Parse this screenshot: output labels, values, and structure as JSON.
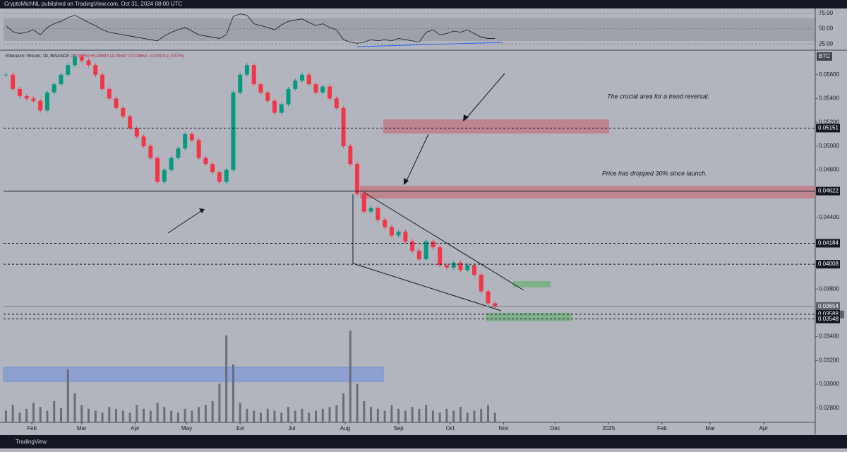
{
  "header": "CryptoMichNL published on TradingView.com, Oct 31, 2024 08:00 UTC",
  "footer": "TradingView",
  "chart_data": {
    "type": "candlestick",
    "legend": {
      "symbol": "Ethereum / Bitcoin, 1D, BINANCE",
      "open": "O0.03654",
      "high": "H0.03692",
      "low": "L0.03647",
      "close": "C0.03654",
      "change": "−0.00021 (−0.57%)"
    },
    "currency": "BTC",
    "countdown": "15:59:42",
    "annotations": [
      "The crucial area for a trend reversal.",
      "Price has dropped 30% since launch."
    ],
    "up_color": "#089981",
    "down_color": "#f23645",
    "x": [
      16,
      20,
      24,
      28,
      32,
      36,
      40,
      44,
      48,
      52,
      56,
      60,
      64,
      68,
      72,
      76,
      80,
      84,
      88,
      92,
      96,
      100,
      104,
      108,
      112,
      116,
      120,
      124,
      128,
      132,
      136,
      140,
      144,
      148,
      152,
      156,
      160,
      164,
      168,
      172,
      176,
      180,
      184,
      188,
      192,
      196,
      200,
      204,
      208,
      212,
      216,
      220,
      224,
      228,
      232,
      236,
      240,
      244,
      248,
      252,
      256,
      260,
      264,
      268,
      272,
      276,
      280,
      284,
      288,
      292,
      296,
      300
    ],
    "close": [
      0.056,
      0.0548,
      0.0542,
      0.054,
      0.0538,
      0.053,
      0.0545,
      0.0552,
      0.056,
      0.0568,
      0.0575,
      0.0572,
      0.0568,
      0.056,
      0.0548,
      0.054,
      0.0532,
      0.0525,
      0.0515,
      0.0508,
      0.05,
      0.049,
      0.047,
      0.048,
      0.049,
      0.0498,
      0.051,
      0.0505,
      0.049,
      0.0485,
      0.0478,
      0.047,
      0.048,
      0.0545,
      0.056,
      0.0568,
      0.0552,
      0.0545,
      0.0538,
      0.0528,
      0.0535,
      0.0548,
      0.0555,
      0.056,
      0.0552,
      0.0545,
      0.055,
      0.054,
      0.0532,
      0.05,
      0.0485,
      0.046,
      0.0445,
      0.0448,
      0.0438,
      0.0432,
      0.0425,
      0.0428,
      0.042,
      0.0412,
      0.0405,
      0.042,
      0.0415,
      0.04,
      0.0398,
      0.0402,
      0.0396,
      0.04,
      0.0392,
      0.0378,
      0.0368,
      0.0365
    ],
    "volume": [
      12,
      18,
      10,
      14,
      20,
      16,
      12,
      22,
      15,
      55,
      30,
      18,
      14,
      12,
      10,
      16,
      14,
      12,
      10,
      18,
      14,
      12,
      20,
      16,
      12,
      10,
      14,
      12,
      16,
      18,
      22,
      40,
      90,
      60,
      20,
      14,
      12,
      10,
      14,
      12,
      10,
      16,
      12,
      14,
      10,
      12,
      14,
      16,
      18,
      30,
      95,
      40,
      22,
      16,
      14,
      12,
      18,
      14,
      12,
      16,
      14,
      18,
      12,
      10,
      14,
      12,
      16,
      10,
      12,
      14,
      18,
      10
    ],
    "rsi": [
      55,
      45,
      42,
      44,
      48,
      40,
      52,
      58,
      62,
      68,
      72,
      66,
      60,
      55,
      48,
      44,
      42,
      40,
      38,
      36,
      34,
      32,
      30,
      38,
      44,
      48,
      52,
      46,
      40,
      38,
      36,
      34,
      40,
      70,
      74,
      72,
      58,
      55,
      52,
      48,
      56,
      62,
      64,
      66,
      60,
      55,
      58,
      52,
      48,
      32,
      28,
      26,
      28,
      32,
      30,
      32,
      30,
      34,
      32,
      30,
      28,
      44,
      48,
      40,
      42,
      46,
      44,
      48,
      42,
      36,
      34,
      34
    ],
    "xlim": [
      14.6,
      486
    ],
    "xticks": [
      {
        "value": 31,
        "label": "Feb"
      },
      {
        "value": 60,
        "label": "Mar"
      },
      {
        "value": 91,
        "label": "Apr"
      },
      {
        "value": 121,
        "label": "May"
      },
      {
        "value": 152,
        "label": "Jun"
      },
      {
        "value": 182,
        "label": "Jul"
      },
      {
        "value": 213,
        "label": "Aug"
      },
      {
        "value": 244,
        "label": "Sep"
      },
      {
        "value": 274,
        "label": "Oct"
      },
      {
        "value": 305,
        "label": "Nov"
      },
      {
        "value": 335,
        "label": "Dec"
      },
      {
        "value": 366,
        "label": "2025"
      },
      {
        "value": 397,
        "label": "Feb"
      },
      {
        "value": 425,
        "label": "Mar"
      },
      {
        "value": 456,
        "label": "Apr"
      }
    ],
    "ylim": [
      0.0268,
      0.058
    ],
    "yticks": [
      {
        "value": 0.056,
        "label": "0.05600"
      },
      {
        "value": 0.054,
        "label": "0.05400"
      },
      {
        "value": 0.052,
        "label": "0.05200"
      },
      {
        "value": 0.05,
        "label": "0.05000"
      },
      {
        "value": 0.048,
        "label": "0.04800"
      },
      {
        "value": 0.044,
        "label": "0.04400"
      },
      {
        "value": 0.038,
        "label": "0.03800"
      },
      {
        "value": 0.034,
        "label": "0.03400"
      },
      {
        "value": 0.032,
        "label": "0.03200"
      },
      {
        "value": 0.03,
        "label": "0.03000"
      },
      {
        "value": 0.028,
        "label": "0.02800"
      }
    ],
    "levels": [
      {
        "value": 0.05151,
        "style": "dashed"
      },
      {
        "value": 0.04622,
        "style": "solid"
      },
      {
        "value": 0.04184,
        "style": "dashed"
      },
      {
        "value": 0.04008,
        "style": "dashed"
      },
      {
        "value": 0.03654,
        "style": "current"
      },
      {
        "value": 0.03588,
        "style": "dashed"
      },
      {
        "value": 0.03548,
        "style": "dashed"
      }
    ],
    "rsi_ylim": [
      16,
      83
    ],
    "rsi_yticks": [
      {
        "value": 75,
        "label": "75.00"
      },
      {
        "value": 50,
        "label": "50.00"
      },
      {
        "value": 25,
        "label": "25.00"
      }
    ]
  }
}
